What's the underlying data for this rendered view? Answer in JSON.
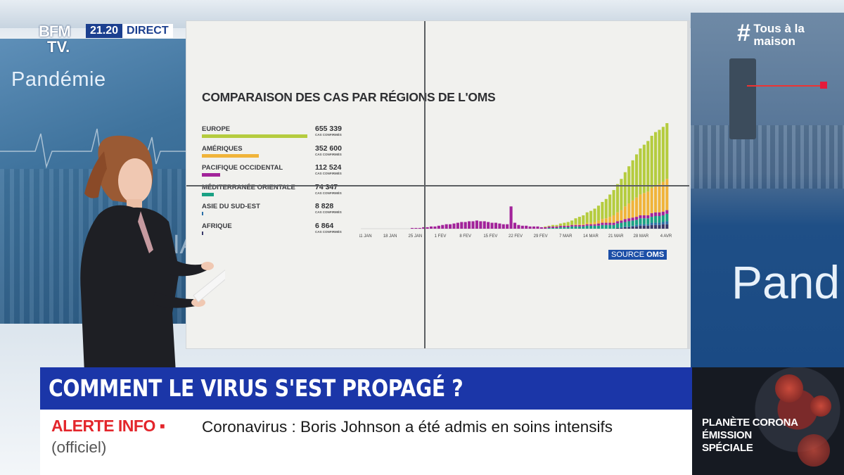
{
  "broadcast": {
    "logo_line1": "BFM",
    "logo_line2": "TV.",
    "time": "21.20",
    "live_label": "DIRECT",
    "hashtag_symbol": "#",
    "hashtag_line1": "Tous à la",
    "hashtag_line2": "maison"
  },
  "backdrop": {
    "left_title": "Pandémie",
    "left_fragment": "NA",
    "right_title": "Pand"
  },
  "graphic": {
    "title": "COMPARAISON DES CAS PAR RÉGIONS DE L'OMS",
    "legend": [
      {
        "name": "EUROPE",
        "value": "655 339",
        "sub": "CAS CONFIRMÉS",
        "color": "#b5cc3e"
      },
      {
        "name": "AMÉRIQUES",
        "value": "352 600",
        "sub": "CAS CONFIRMÉS",
        "color": "#f0b43a"
      },
      {
        "name": "PACIFIQUE OCCIDENTAL",
        "value": "112 524",
        "sub": "CAS CONFIRMÉS",
        "color": "#a2239a"
      },
      {
        "name": "MÉDITERRANÉE ORIENTALE",
        "value": "74 347",
        "sub": "CAS CONFIRMÉS",
        "color": "#1aa184"
      },
      {
        "name": "ASIE DU SUD-EST",
        "value": "8 828",
        "sub": "CAS CONFIRMÉS",
        "color": "#2b6fa8"
      },
      {
        "name": "AFRIQUE",
        "value": "6 864",
        "sub": "CAS CONFIRMÉS",
        "color": "#3a3a6a"
      }
    ],
    "source_prefix": "SOURCE",
    "source_name": "OMS"
  },
  "chart_data": {
    "type": "bar",
    "stacked": true,
    "x_tick_labels": [
      "11 JAN",
      "18 JAN",
      "25 JAN",
      "1 FEV",
      "8 FEV",
      "15 FEV",
      "22 FEV",
      "29 FEV",
      "7 MAR",
      "14 MAR",
      "21 MAR",
      "28 MAR",
      "4 AVR"
    ],
    "series": [
      {
        "name": "AFRIQUE",
        "color": "#3a3a6a",
        "values": [
          0,
          0,
          0,
          0,
          0,
          0,
          0,
          0,
          0,
          0,
          0,
          0,
          0,
          0,
          0,
          0,
          0,
          0,
          0,
          0,
          0,
          0,
          0,
          0,
          0,
          0,
          0,
          0,
          0,
          0,
          0,
          0,
          0,
          0,
          0,
          0,
          0,
          0,
          0,
          0,
          0,
          0,
          0,
          0,
          0,
          0,
          0,
          0,
          0,
          0,
          0,
          0,
          0,
          0,
          0,
          0,
          0,
          0,
          0,
          0,
          0,
          0,
          0,
          0,
          0,
          0,
          0,
          1,
          1,
          2,
          2,
          3,
          3,
          4,
          4,
          4,
          5,
          5,
          5,
          6,
          6
        ]
      },
      {
        "name": "ASIE DU SUD-EST",
        "color": "#2b6fa8",
        "values": [
          0,
          0,
          0,
          0,
          0,
          0,
          0,
          0,
          0,
          0,
          0,
          0,
          0,
          0,
          0,
          0,
          0,
          0,
          0,
          0,
          0,
          0,
          0,
          0,
          0,
          0,
          0,
          0,
          0,
          0,
          0,
          0,
          0,
          0,
          0,
          0,
          0,
          0,
          0,
          0,
          0,
          0,
          0,
          0,
          0,
          0,
          0,
          0,
          0,
          0,
          0,
          0,
          0,
          0,
          0,
          0,
          0,
          0,
          0,
          0,
          0,
          0,
          0,
          0,
          0,
          0,
          0,
          0,
          1,
          1,
          1,
          1,
          2,
          2,
          2,
          2,
          3,
          3,
          3,
          3,
          4
        ]
      },
      {
        "name": "MÉDITERRANÉE ORIENTALE",
        "color": "#1aa184",
        "values": [
          0,
          0,
          0,
          0,
          0,
          0,
          0,
          0,
          0,
          0,
          0,
          0,
          0,
          0,
          0,
          0,
          0,
          0,
          0,
          0,
          0,
          0,
          0,
          0,
          0,
          0,
          0,
          0,
          0,
          0,
          0,
          0,
          0,
          0,
          0,
          0,
          0,
          0,
          0,
          0,
          0,
          0,
          0,
          0,
          0,
          0,
          0,
          0,
          0,
          1,
          1,
          1,
          2,
          2,
          2,
          3,
          3,
          3,
          3,
          4,
          4,
          4,
          4,
          5,
          5,
          5,
          5,
          6,
          6,
          6,
          7,
          7,
          7,
          8,
          8,
          8,
          8,
          9,
          9,
          9,
          10
        ]
      },
      {
        "name": "PACIFIQUE OCCIDENTAL",
        "color": "#a2239a",
        "values": [
          0,
          0,
          0,
          0,
          0,
          0,
          0,
          0,
          0,
          0,
          0,
          0,
          0,
          1,
          1,
          1,
          2,
          2,
          3,
          3,
          4,
          5,
          6,
          6,
          7,
          8,
          9,
          9,
          10,
          10,
          11,
          10,
          10,
          9,
          8,
          8,
          7,
          6,
          6,
          30,
          8,
          5,
          4,
          4,
          3,
          3,
          3,
          2,
          2,
          2,
          2,
          2,
          2,
          2,
          2,
          2,
          2,
          2,
          2,
          2,
          2,
          2,
          3,
          3,
          3,
          3,
          3,
          3,
          3,
          4,
          4,
          4,
          4,
          4,
          4,
          4,
          5,
          5,
          5,
          5,
          5
        ]
      },
      {
        "name": "AMÉRIQUES",
        "color": "#f0b43a",
        "values": [
          0,
          0,
          0,
          0,
          0,
          0,
          0,
          0,
          0,
          0,
          0,
          0,
          0,
          0,
          0,
          0,
          0,
          0,
          0,
          0,
          0,
          0,
          0,
          0,
          0,
          0,
          0,
          0,
          0,
          0,
          0,
          0,
          0,
          0,
          0,
          0,
          0,
          0,
          0,
          0,
          0,
          0,
          0,
          0,
          0,
          0,
          0,
          0,
          0,
          0,
          0,
          0,
          0,
          0,
          0,
          0,
          1,
          1,
          1,
          2,
          2,
          3,
          4,
          5,
          6,
          8,
          10,
          12,
          14,
          17,
          20,
          23,
          26,
          28,
          30,
          32,
          34,
          36,
          38,
          40,
          42
        ]
      },
      {
        "name": "EUROPE",
        "color": "#b5cc3e",
        "values": [
          0,
          0,
          0,
          0,
          0,
          0,
          0,
          0,
          0,
          0,
          0,
          0,
          0,
          0,
          0,
          0,
          0,
          0,
          0,
          0,
          0,
          0,
          0,
          0,
          0,
          0,
          0,
          0,
          0,
          0,
          0,
          0,
          0,
          0,
          0,
          0,
          0,
          0,
          0,
          0,
          0,
          0,
          0,
          0,
          0,
          0,
          0,
          0,
          1,
          1,
          2,
          2,
          3,
          4,
          5,
          6,
          8,
          10,
          12,
          14,
          16,
          18,
          20,
          23,
          26,
          30,
          34,
          38,
          42,
          46,
          50,
          54,
          58,
          62,
          65,
          68,
          70,
          72,
          73,
          74,
          75
        ]
      }
    ]
  },
  "lower_third": {
    "headline": "COMMENT LE VIRUS S'EST PROPAGÉ ?",
    "alert_label": "ALERTE INFO ▪",
    "alert_text": "Coronavirus : Boris Johnson a été admis en soins intensifs",
    "alert_note": "(officiel)"
  },
  "promo": {
    "line1": "PLANÈTE CORONA",
    "line2": "ÉMISSION",
    "line3": "SPÉCIALE"
  }
}
